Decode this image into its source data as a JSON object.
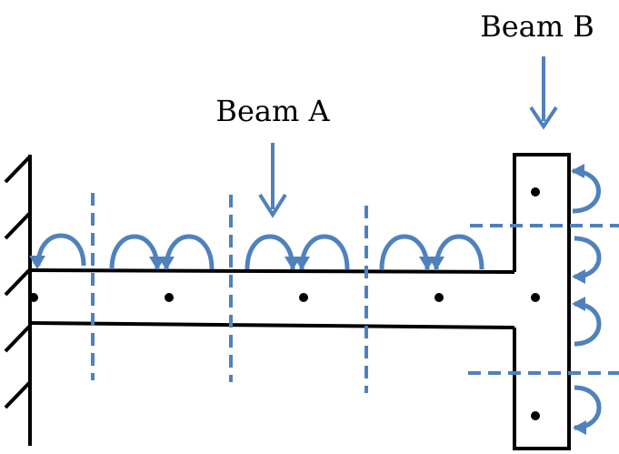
{
  "labels": {
    "beam_a": "Beam A",
    "beam_b": "Beam B"
  },
  "colors": {
    "outline": "#000000",
    "accent": "#4f81bd",
    "accent_dark": "#2f5f8f",
    "background": "#ffffff"
  },
  "elements": {
    "fixed_support": "wall-with-hatching",
    "beam_a": "horizontal-beam",
    "beam_b": "vertical-beam",
    "load_arrows": "down-arrow-icon",
    "moment_arrows": "curved-arrow-icon",
    "section_cuts": "dashed-line",
    "nodes": "node-dot"
  }
}
